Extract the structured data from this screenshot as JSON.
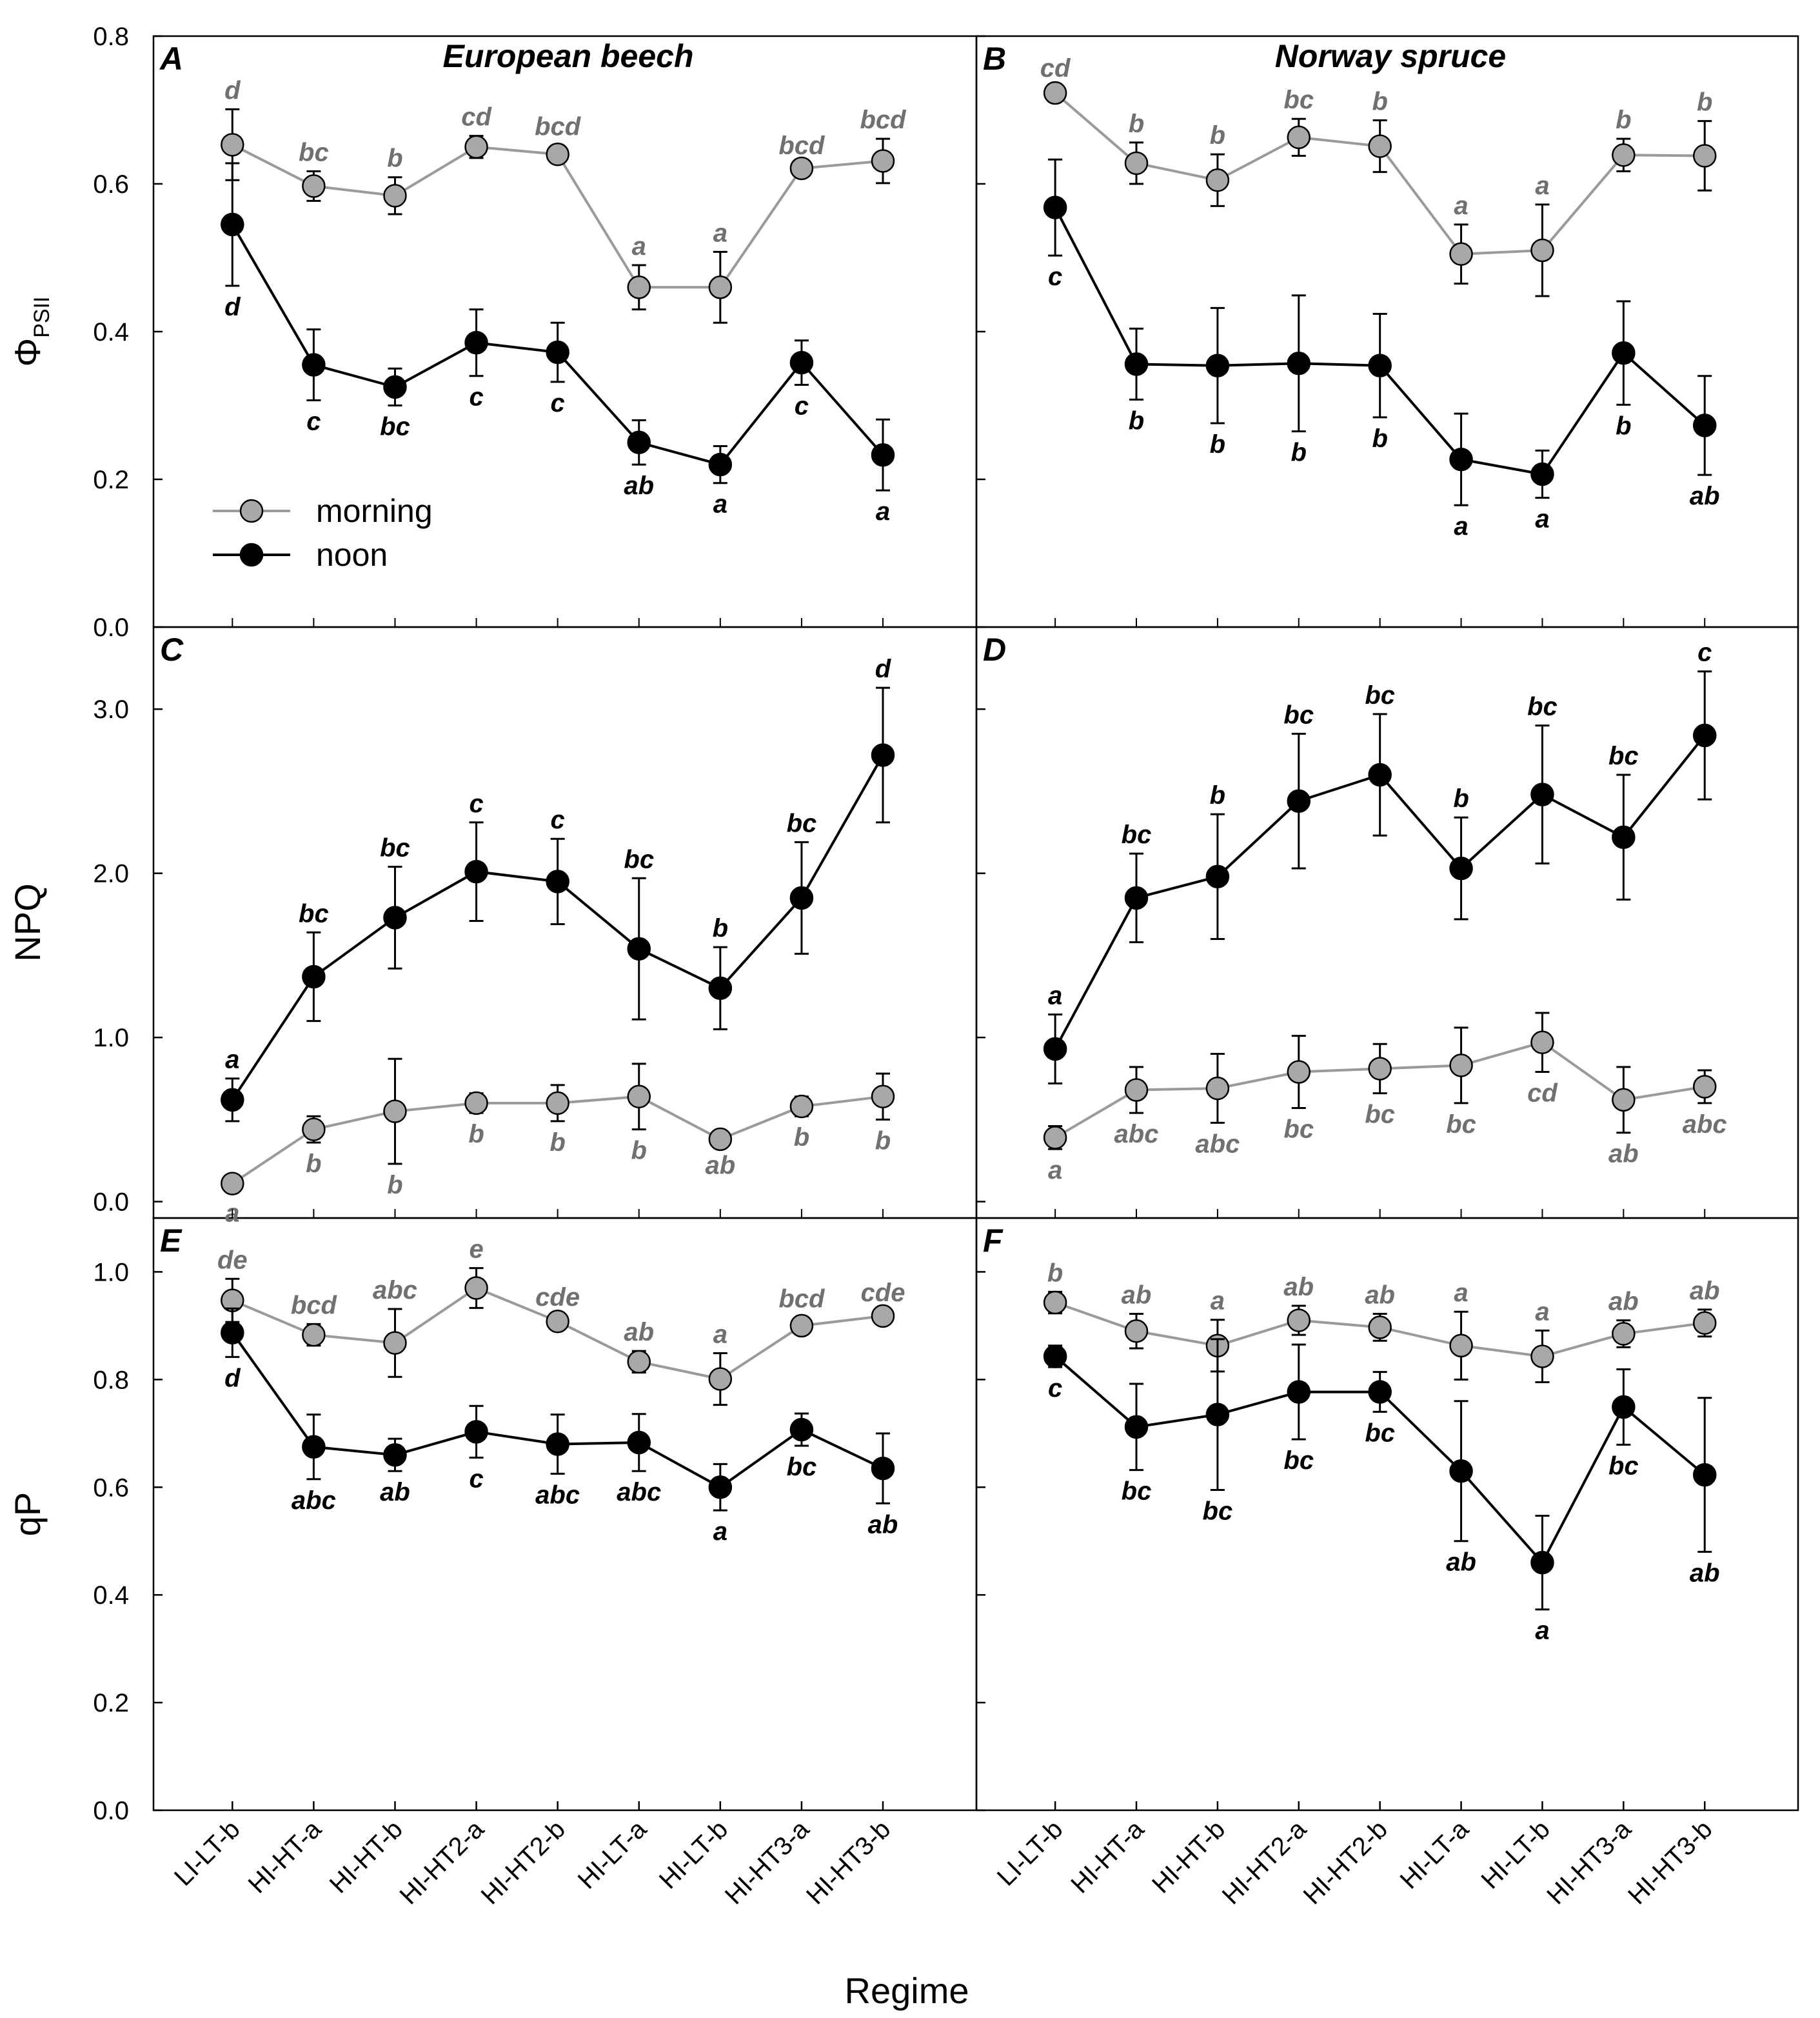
{
  "chart_data": {
    "type": "line",
    "title": "",
    "xlabel": "Regime",
    "categories": [
      "LI-LT-b",
      "HI-HT-a",
      "HI-HT-b",
      "HI-HT2-a",
      "HI-HT2-b",
      "HI-LT-a",
      "HI-LT-b",
      "HI-HT3-a",
      "HI-HT3-b"
    ],
    "legend": {
      "placement": "bottom-left of panel A",
      "entries": [
        "morning",
        "noon"
      ]
    },
    "colors": {
      "morning": "#a8a8a8",
      "morning_line": "#9a9a9a",
      "noon": "#000000",
      "morning_label": "#707070"
    },
    "rows": [
      {
        "ylabel_main": "Φ",
        "ylabel_sub": "PSII",
        "ylim": [
          0,
          0.8
        ],
        "ticks": [
          "0.0",
          "0.2",
          "0.4",
          "0.6",
          "0.8"
        ],
        "tick_values": [
          0,
          0.2,
          0.4,
          0.6,
          0.8
        ]
      },
      {
        "ylabel_main": "NPQ",
        "ylabel_sub": "",
        "ylim": [
          -0.1,
          3.5
        ],
        "ticks": [
          "0.0",
          "1.0",
          "2.0",
          "3.0"
        ],
        "tick_values": [
          0,
          1,
          2,
          3
        ]
      },
      {
        "ylabel_main": "qP",
        "ylabel_sub": "",
        "ylim": [
          0,
          1.1
        ],
        "ticks": [
          "0.0",
          "0.2",
          "0.4",
          "0.6",
          "0.8",
          "1.0"
        ],
        "tick_values": [
          0,
          0.2,
          0.4,
          0.6,
          0.8,
          1.0
        ]
      }
    ],
    "panels": [
      {
        "letter": "A",
        "species": "European beech",
        "row": 0,
        "col": 0,
        "series": [
          {
            "name": "morning",
            "values": [
              0.653,
              0.597,
              0.584,
              0.65,
              0.64,
              0.46,
              0.46,
              0.621,
              0.631
            ],
            "errors": [
              0.048,
              0.02,
              0.025,
              0.015,
              0.012,
              0.03,
              0.048,
              0.005,
              0.03
            ],
            "labels": [
              "d",
              "bc",
              "b",
              "cd",
              "bcd",
              "a",
              "a",
              "bcd",
              "bcd"
            ]
          },
          {
            "name": "noon",
            "values": [
              0.545,
              0.355,
              0.325,
              0.385,
              0.372,
              0.25,
              0.22,
              0.358,
              0.233
            ],
            "errors": [
              0.083,
              0.048,
              0.025,
              0.045,
              0.04,
              0.03,
              0.025,
              0.03,
              0.048
            ],
            "labels": [
              "d",
              "c",
              "bc",
              "c",
              "c",
              "ab",
              "a",
              "c",
              "a"
            ]
          }
        ]
      },
      {
        "letter": "B",
        "species": "Norway spruce",
        "row": 0,
        "col": 1,
        "series": [
          {
            "name": "morning",
            "values": [
              0.723,
              0.628,
              0.605,
              0.663,
              0.651,
              0.505,
              0.51,
              0.639,
              0.638
            ],
            "errors": [
              0.008,
              0.028,
              0.035,
              0.025,
              0.035,
              0.04,
              0.062,
              0.022,
              0.047
            ],
            "labels": [
              "cd",
              "b",
              "b",
              "bc",
              "b",
              "a",
              "a",
              "b",
              "b"
            ]
          },
          {
            "name": "noon",
            "values": [
              0.568,
              0.356,
              0.354,
              0.357,
              0.354,
              0.227,
              0.207,
              0.371,
              0.273
            ],
            "errors": [
              0.065,
              0.048,
              0.078,
              0.092,
              0.07,
              0.062,
              0.032,
              0.07,
              0.067
            ],
            "labels": [
              "c",
              "b",
              "b",
              "b",
              "b",
              "a",
              "a",
              "b",
              "ab"
            ]
          }
        ]
      },
      {
        "letter": "C",
        "species": "",
        "row": 1,
        "col": 0,
        "series": [
          {
            "name": "morning",
            "values": [
              0.11,
              0.44,
              0.55,
              0.6,
              0.6,
              0.64,
              0.38,
              0.58,
              0.64
            ],
            "errors": [
              0.05,
              0.08,
              0.32,
              0.06,
              0.11,
              0.2,
              0.03,
              0.06,
              0.14
            ],
            "labels": [
              "a",
              "b",
              "b",
              "b",
              "b",
              "b",
              "ab",
              "b",
              "b"
            ]
          },
          {
            "name": "noon",
            "values": [
              0.62,
              1.37,
              1.73,
              2.01,
              1.95,
              1.54,
              1.3,
              1.85,
              2.72
            ],
            "errors": [
              0.13,
              0.27,
              0.31,
              0.3,
              0.26,
              0.43,
              0.25,
              0.34,
              0.41
            ],
            "labels": [
              "a",
              "bc",
              "bc",
              "c",
              "c",
              "bc",
              "b",
              "bc",
              "d"
            ]
          }
        ]
      },
      {
        "letter": "D",
        "species": "",
        "row": 1,
        "col": 1,
        "series": [
          {
            "name": "morning",
            "values": [
              0.39,
              0.68,
              0.69,
              0.79,
              0.81,
              0.83,
              0.97,
              0.62,
              0.7
            ],
            "errors": [
              0.07,
              0.14,
              0.21,
              0.22,
              0.15,
              0.23,
              0.18,
              0.2,
              0.1
            ],
            "labels": [
              "a",
              "abc",
              "abc",
              "bc",
              "bc",
              "bc",
              "cd",
              "ab",
              "abc"
            ]
          },
          {
            "name": "noon",
            "values": [
              0.93,
              1.85,
              1.98,
              2.44,
              2.6,
              2.03,
              2.48,
              2.22,
              2.84
            ],
            "errors": [
              0.21,
              0.27,
              0.38,
              0.41,
              0.37,
              0.31,
              0.42,
              0.38,
              0.39
            ],
            "labels": [
              "a",
              "bc",
              "b",
              "bc",
              "bc",
              "b",
              "bc",
              "bc",
              "c"
            ]
          }
        ]
      },
      {
        "letter": "E",
        "species": "",
        "row": 2,
        "col": 0,
        "series": [
          {
            "name": "morning",
            "values": [
              0.947,
              0.883,
              0.868,
              0.97,
              0.908,
              0.833,
              0.801,
              0.9,
              0.918
            ],
            "errors": [
              0.04,
              0.02,
              0.063,
              0.037,
              0.01,
              0.02,
              0.048,
              0.015,
              0.008
            ],
            "labels": [
              "de",
              "bcd",
              "abc",
              "e",
              "cde",
              "ab",
              "a",
              "bcd",
              "cde"
            ]
          },
          {
            "name": "noon",
            "values": [
              0.887,
              0.675,
              0.66,
              0.703,
              0.68,
              0.683,
              0.6,
              0.707,
              0.635
            ],
            "errors": [
              0.045,
              0.06,
              0.03,
              0.048,
              0.055,
              0.053,
              0.043,
              0.03,
              0.065
            ],
            "labels": [
              "d",
              "abc",
              "ab",
              "c",
              "abc",
              "abc",
              "a",
              "bc",
              "ab"
            ]
          }
        ]
      },
      {
        "letter": "F",
        "species": "",
        "row": 2,
        "col": 1,
        "series": [
          {
            "name": "morning",
            "values": [
              0.943,
              0.89,
              0.863,
              0.91,
              0.897,
              0.863,
              0.843,
              0.885,
              0.905
            ],
            "errors": [
              0.02,
              0.032,
              0.048,
              0.027,
              0.025,
              0.063,
              0.048,
              0.025,
              0.025
            ],
            "labels": [
              "b",
              "ab",
              "a",
              "ab",
              "ab",
              "a",
              "a",
              "ab",
              "ab"
            ]
          },
          {
            "name": "noon",
            "values": [
              0.843,
              0.712,
              0.735,
              0.777,
              0.777,
              0.63,
              0.46,
              0.749,
              0.623
            ],
            "errors": [
              0.02,
              0.08,
              0.14,
              0.088,
              0.037,
              0.13,
              0.087,
              0.07,
              0.143
            ],
            "labels": [
              "c",
              "bc",
              "bc",
              "bc",
              "bc",
              "ab",
              "a",
              "bc",
              "ab"
            ]
          }
        ]
      }
    ]
  }
}
